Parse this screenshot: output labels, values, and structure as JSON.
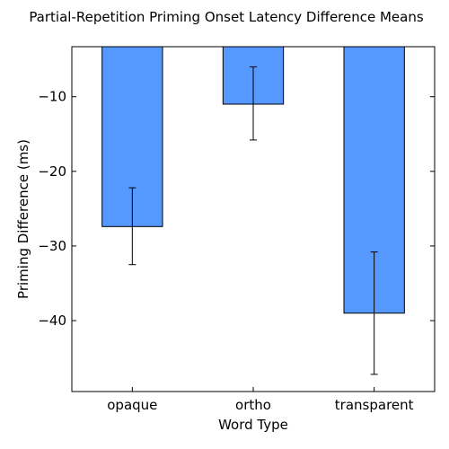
{
  "chart_data": {
    "type": "bar",
    "title": "Partial-Repetition Priming Onset Latency Difference Means",
    "xlabel": "Word Type",
    "ylabel": "Priming Difference (ms)",
    "categories": [
      "opaque",
      "ortho",
      "transparent"
    ],
    "values": [
      -27.4,
      -11.0,
      -39.0
    ],
    "error_low": [
      -32.5,
      -15.8,
      -47.2
    ],
    "error_high": [
      -22.2,
      -6.0,
      -30.8
    ],
    "ylim": [
      -49.5,
      -3.3
    ],
    "yticks": [
      -10,
      -20,
      -30,
      -40
    ],
    "ytick_labels": [
      "−10",
      "−20",
      "−30",
      "−40"
    ],
    "grid": false,
    "bar_color": "#5599ff"
  }
}
